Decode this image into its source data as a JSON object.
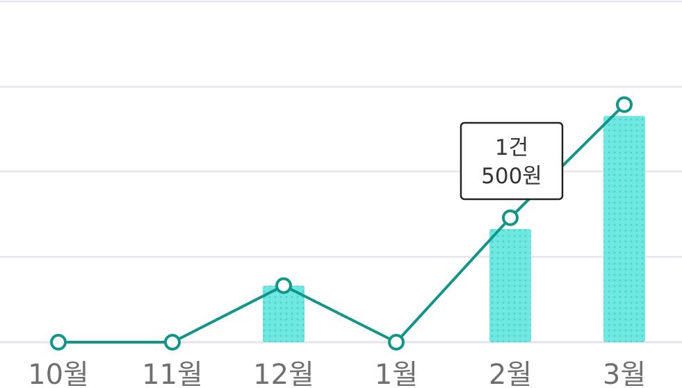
{
  "chart_data": {
    "type": "bar",
    "categories": [
      "10월",
      "11월",
      "12월",
      "1월",
      "2월",
      "3월"
    ],
    "bar_values": [
      0,
      0,
      1,
      0,
      2,
      4
    ],
    "line_values": [
      0,
      0,
      1,
      0,
      2.2,
      4.2
    ],
    "ylim": [
      0,
      4.5
    ],
    "grid": true,
    "colors": {
      "bar": "#6fe8e1",
      "bar_dot": "#4fd3cb",
      "line": "#0f9688",
      "grid": "#e4e4ea",
      "tick_text": "#6f6f6f"
    },
    "tooltip": {
      "category": "2월",
      "count_label": "1건",
      "amount_label": "500원"
    }
  }
}
